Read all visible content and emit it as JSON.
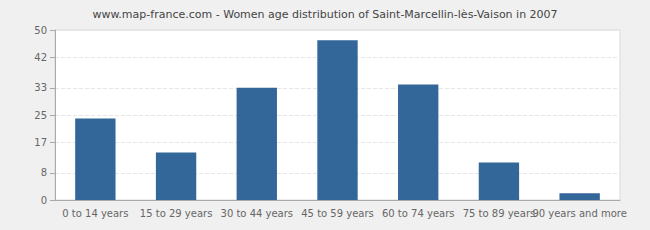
{
  "chart_data": {
    "type": "bar",
    "title": "www.map-france.com - Women age distribution of Saint-Marcellin-lès-Vaison in 2007",
    "categories": [
      "0 to 14 years",
      "15 to 29 years",
      "30 to 44 years",
      "45 to 59 years",
      "60 to 74 years",
      "75 to 89 years",
      "90 years and more"
    ],
    "values": [
      24,
      14,
      33,
      47,
      34,
      11,
      2
    ],
    "color": "#336699",
    "ylim": [
      0,
      50
    ],
    "yticks": [
      0,
      8,
      17,
      25,
      33,
      42,
      50
    ],
    "grid": true
  }
}
